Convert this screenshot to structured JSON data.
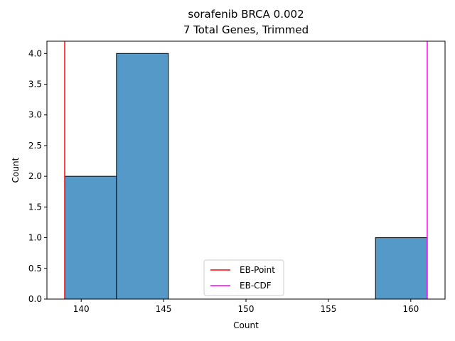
{
  "chart_data": {
    "type": "bar",
    "title_line1": "sorafenib BRCA 0.002",
    "title_line2": "7 Total Genes, Trimmed",
    "xlabel": "Count",
    "ylabel": "Count",
    "xlim": [
      137.92,
      162.08
    ],
    "ylim": [
      0,
      4.2
    ],
    "xticks": [
      140,
      145,
      150,
      155,
      160
    ],
    "yticks": [
      0.0,
      0.5,
      1.0,
      1.5,
      2.0,
      2.5,
      3.0,
      3.5,
      4.0
    ],
    "bins": [
      {
        "x0": 139.0,
        "x1": 142.14,
        "count": 2
      },
      {
        "x0": 142.14,
        "x1": 145.29,
        "count": 4
      },
      {
        "x0": 145.29,
        "x1": 148.43,
        "count": 0
      },
      {
        "x0": 148.43,
        "x1": 151.57,
        "count": 0
      },
      {
        "x0": 151.57,
        "x1": 154.71,
        "count": 0
      },
      {
        "x0": 154.71,
        "x1": 157.86,
        "count": 0
      },
      {
        "x0": 157.86,
        "x1": 161.0,
        "count": 1
      }
    ],
    "bar_color": "#5499c7",
    "vlines": [
      {
        "name": "EB-Point",
        "x": 139.0,
        "color": "#ff0000"
      },
      {
        "name": "EB-CDF",
        "x": 161.0,
        "color": "#ff00ff"
      }
    ],
    "legend": {
      "position": "lower center"
    },
    "grid": false
  }
}
